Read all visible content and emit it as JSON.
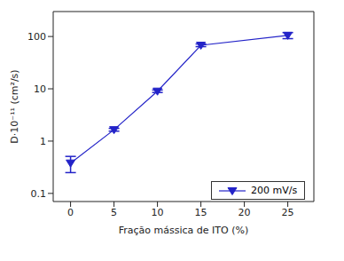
{
  "chart_data": {
    "type": "line",
    "x": [
      0,
      5,
      10,
      15,
      25
    ],
    "series": [
      {
        "name": "200 mV/s",
        "color": "#2323c8",
        "values": [
          0.38,
          1.65,
          9,
          68,
          105
        ],
        "errors": [
          0.13,
          0.1,
          0.5,
          4,
          14
        ],
        "marker": "triangle_down",
        "line_style": "solid"
      }
    ],
    "x_label": "Fração mássica de ITO (%)",
    "y_label": "D·10⁻¹¹ (cm²/s)",
    "xlim": [
      -2,
      28
    ],
    "xticks": [
      0,
      5,
      10,
      15,
      20,
      25
    ],
    "ylim": [
      0.07,
      300
    ],
    "yticks": [
      0.1,
      1,
      10,
      100
    ],
    "log": "y",
    "grid": false,
    "legend": "lower right"
  }
}
